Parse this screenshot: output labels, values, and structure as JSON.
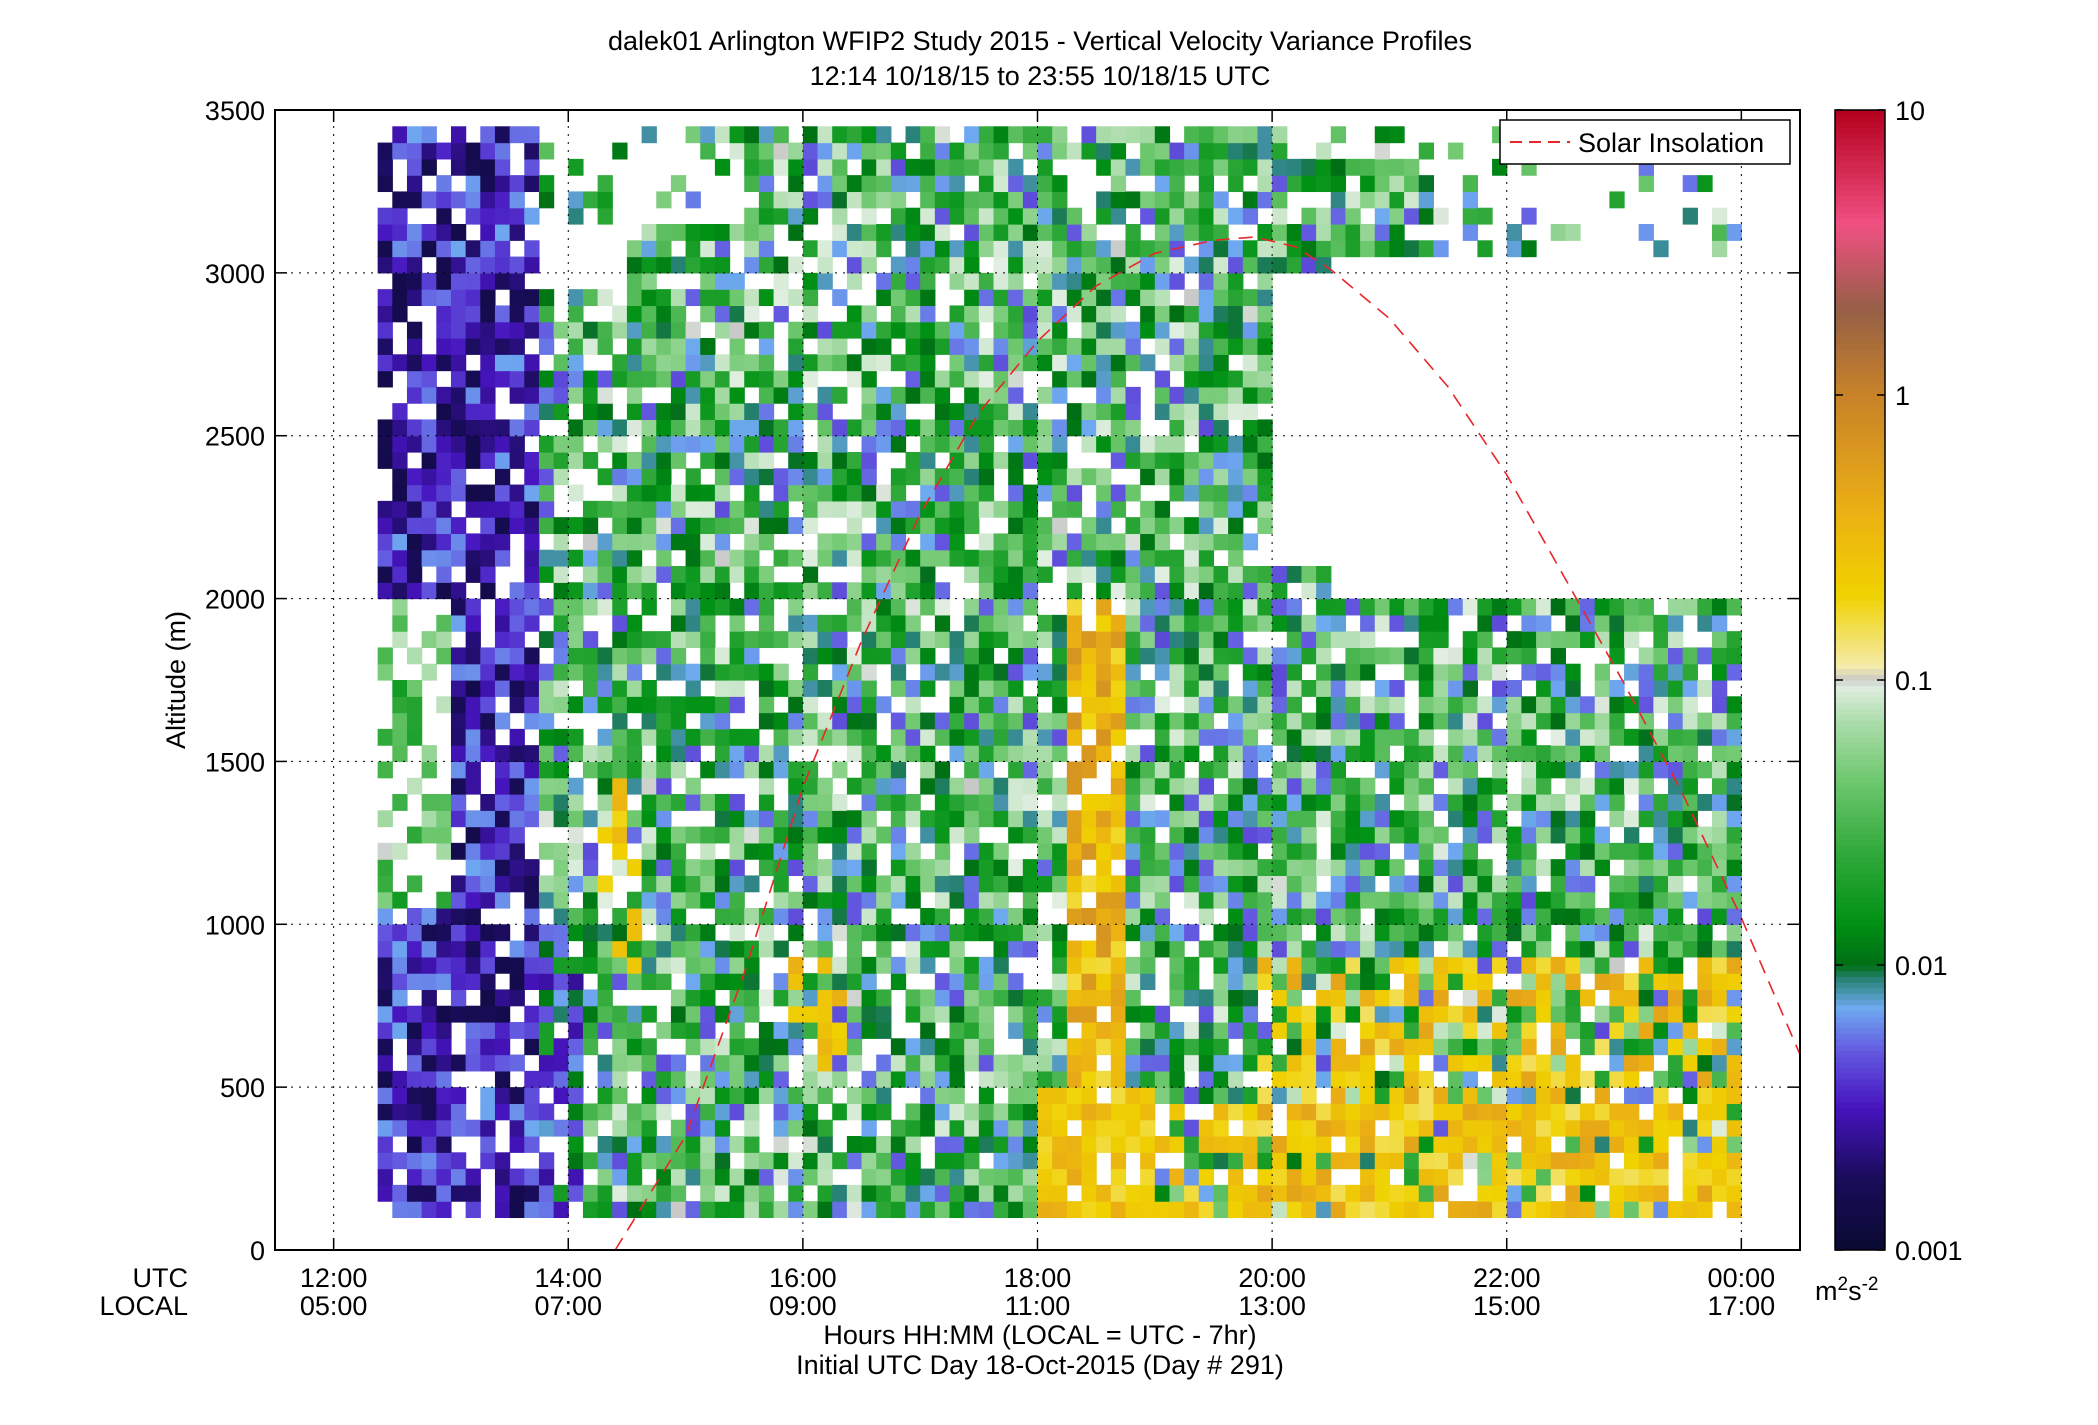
{
  "chart_data": {
    "type": "heatmap",
    "title": "dalek01 Arlington WFIP2 Study 2015 - Vertical Velocity Variance Profiles",
    "subtitle": "12:14 10/18/15 to 23:55 10/18/15  UTC",
    "ylabel": "Altitude (m)",
    "xlabel": "Hours HH:MM  (LOCAL = UTC - 7hr)",
    "xlabel2": "Initial UTC Day 18-Oct-2015 (Day # 291)",
    "xrow_labels": [
      "UTC",
      "LOCAL"
    ],
    "ylim": [
      0,
      3500
    ],
    "xlim_hours_utc": [
      11.5,
      24.5
    ],
    "grid": true,
    "yticks": [
      "0",
      "500",
      "1000",
      "1500",
      "2000",
      "2500",
      "3000",
      "3500"
    ],
    "xticks_utc": [
      "12:00",
      "14:00",
      "16:00",
      "18:00",
      "20:00",
      "22:00",
      "00:00"
    ],
    "xticks_local": [
      "05:00",
      "07:00",
      "09:00",
      "11:00",
      "13:00",
      "15:00",
      "17:00"
    ],
    "legend": {
      "entries": [
        "Solar Insolation"
      ],
      "placement": "top-right"
    },
    "colorbar": {
      "scale": "log",
      "range": [
        0.001,
        10
      ],
      "ticks": [
        "0.001",
        "0.01",
        "0.1",
        "1",
        "10"
      ],
      "units_base": "m",
      "units_sup1": "2",
      "units_mid": "s",
      "units_sup2": "-2"
    },
    "series": [
      {
        "name": "Solar Insolation",
        "color": "#e8262a",
        "style": "dashed",
        "x_hours_utc": [
          14.4,
          15.0,
          15.5,
          16.0,
          16.5,
          17.0,
          17.5,
          18.0,
          18.5,
          19.0,
          19.5,
          19.85,
          20.2,
          20.5,
          21.0,
          21.5,
          22.0,
          22.5,
          23.0,
          23.5,
          24.0,
          24.5
        ],
        "y_altitude_m": [
          0,
          350,
          850,
          1420,
          1870,
          2260,
          2570,
          2790,
          2960,
          3060,
          3100,
          3110,
          3080,
          3010,
          2860,
          2650,
          2380,
          2060,
          1740,
          1400,
          1020,
          600
        ]
      }
    ],
    "heatmap_regions": [
      {
        "label": "low-variance dark/purple band",
        "x_hours_utc": [
          12.2,
          13.7
        ],
        "y_altitude_m": [
          100,
          3500
        ],
        "value_range": [
          0.001,
          0.005
        ]
      },
      {
        "label": "mixed green variance",
        "x_hours_utc": [
          13.7,
          24.0
        ],
        "y_altitude_m": [
          100,
          3450
        ],
        "value_range": [
          0.005,
          0.08
        ]
      },
      {
        "label": "high-variance yellow column",
        "x_hours_utc": [
          18.2,
          18.7
        ],
        "y_altitude_m": [
          100,
          2000
        ],
        "value_range": [
          0.2,
          1.0
        ]
      },
      {
        "label": "afternoon boundary-layer yellows",
        "x_hours_utc": [
          19.8,
          23.6
        ],
        "y_altitude_m": [
          100,
          900
        ],
        "value_range": [
          0.15,
          0.6
        ]
      },
      {
        "label": "data gap",
        "x_hours_utc": [
          19.9,
          24.0
        ],
        "y_altitude_m": [
          2000,
          3000
        ],
        "value_range": null
      }
    ]
  }
}
